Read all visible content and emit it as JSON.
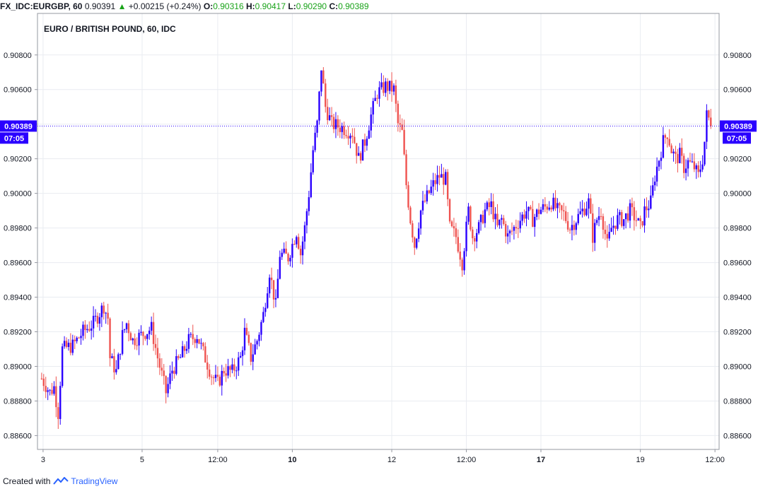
{
  "header": {
    "symbol": "FX_IDC:EURGBP, 60",
    "price": "0.90391",
    "change": "+0.00215 (+0.24%)",
    "o_label": "O:",
    "o_value": "0.90316",
    "h_label": "H:",
    "h_value": "0.90417",
    "l_label": "L:",
    "l_value": "0.90290",
    "c_label": "C:",
    "c_value": "0.90389"
  },
  "footer": {
    "created_with": "Created with",
    "brand": "TradingView"
  },
  "colors": {
    "up": "#2a00ff",
    "down": "#ef5350",
    "grid": "#e9ecf1",
    "badge": "#2a00ff",
    "accent_green": "#1aa31a"
  },
  "chart_data": {
    "type": "candlestick",
    "title": "EURO / BRITISH POUND, 60, IDC",
    "ylim": [
      0.8852,
      0.9104
    ],
    "y_ticks": [
      "0.88600",
      "0.88800",
      "0.89000",
      "0.89200",
      "0.89400",
      "0.89600",
      "0.89800",
      "0.90000",
      "0.90200",
      "0.90400",
      "0.90600",
      "0.90800"
    ],
    "x_ticks": [
      {
        "label": "3",
        "bold": false,
        "x": 0.7
      },
      {
        "label": "5",
        "bold": false,
        "x": 48.5
      },
      {
        "label": "12:00",
        "bold": false,
        "x": 85
      },
      {
        "label": "10",
        "bold": true,
        "x": 121
      },
      {
        "label": "12",
        "bold": false,
        "x": 169
      },
      {
        "label": "12:00",
        "bold": false,
        "x": 205
      },
      {
        "label": "17",
        "bold": true,
        "x": 241
      },
      {
        "label": "19",
        "bold": false,
        "x": 289
      },
      {
        "label": "12:00",
        "bold": false,
        "x": 325
      }
    ],
    "x_range": [
      -2,
      327
    ],
    "last_price": "0.90389",
    "last_price_value": 0.90389,
    "countdown": "07:05",
    "anchors": [
      [
        0,
        0.8893
      ],
      [
        4,
        0.8885
      ],
      [
        6,
        0.8888
      ],
      [
        8,
        0.8873
      ],
      [
        10,
        0.891
      ],
      [
        15,
        0.8912
      ],
      [
        20,
        0.892
      ],
      [
        25,
        0.8925
      ],
      [
        30,
        0.8935
      ],
      [
        32,
        0.8928
      ],
      [
        33,
        0.8905
      ],
      [
        36,
        0.8897
      ],
      [
        39,
        0.8918
      ],
      [
        41,
        0.8925
      ],
      [
        44,
        0.8915
      ],
      [
        48,
        0.8918
      ],
      [
        53,
        0.8922
      ],
      [
        56,
        0.8905
      ],
      [
        60,
        0.8885
      ],
      [
        63,
        0.8898
      ],
      [
        67,
        0.8905
      ],
      [
        71,
        0.8915
      ],
      [
        75,
        0.8918
      ],
      [
        78,
        0.8908
      ],
      [
        82,
        0.8895
      ],
      [
        85,
        0.889
      ],
      [
        88,
        0.8898
      ],
      [
        92,
        0.8897
      ],
      [
        96,
        0.8905
      ],
      [
        98,
        0.892
      ],
      [
        101,
        0.8905
      ],
      [
        104,
        0.8915
      ],
      [
        107,
        0.893
      ],
      [
        110,
        0.8955
      ],
      [
        113,
        0.8935
      ],
      [
        115,
        0.8965
      ],
      [
        119,
        0.8963
      ],
      [
        123,
        0.8978
      ],
      [
        125,
        0.8965
      ],
      [
        127,
        0.898
      ],
      [
        129,
        0.9
      ],
      [
        131,
        0.9025
      ],
      [
        133,
        0.904
      ],
      [
        135,
        0.9073
      ],
      [
        137,
        0.905
      ],
      [
        140,
        0.904
      ],
      [
        145,
        0.9038
      ],
      [
        150,
        0.9035
      ],
      [
        153,
        0.902
      ],
      [
        156,
        0.903
      ],
      [
        159,
        0.9045
      ],
      [
        162,
        0.9058
      ],
      [
        166,
        0.9062
      ],
      [
        170,
        0.906
      ],
      [
        172,
        0.904
      ],
      [
        174,
        0.9035
      ],
      [
        176,
        0.9005
      ],
      [
        178,
        0.8985
      ],
      [
        180,
        0.897
      ],
      [
        183,
        0.899
      ],
      [
        186,
        0.8998
      ],
      [
        189,
        0.9005
      ],
      [
        192,
        0.901
      ],
      [
        195,
        0.9008
      ],
      [
        197,
        0.898
      ],
      [
        200,
        0.8975
      ],
      [
        203,
        0.896
      ],
      [
        206,
        0.899
      ],
      [
        208,
        0.8975
      ],
      [
        211,
        0.898
      ],
      [
        214,
        0.899
      ],
      [
        217,
        0.8993
      ],
      [
        220,
        0.898
      ],
      [
        222,
        0.8985
      ],
      [
        225,
        0.8975
      ],
      [
        228,
        0.898
      ],
      [
        231,
        0.8985
      ],
      [
        234,
        0.899
      ],
      [
        237,
        0.8985
      ],
      [
        240,
        0.899
      ],
      [
        243,
        0.8992
      ],
      [
        246,
        0.8995
      ],
      [
        249,
        0.899
      ],
      [
        252,
        0.8988
      ],
      [
        255,
        0.898
      ],
      [
        258,
        0.8985
      ],
      [
        261,
        0.899
      ],
      [
        264,
        0.8995
      ],
      [
        266,
        0.8975
      ],
      [
        268,
        0.8985
      ],
      [
        270,
        0.899
      ],
      [
        273,
        0.897
      ],
      [
        275,
        0.898
      ],
      [
        278,
        0.8985
      ],
      [
        281,
        0.8985
      ],
      [
        284,
        0.899
      ],
      [
        287,
        0.8985
      ],
      [
        289,
        0.898
      ],
      [
        291,
        0.899
      ],
      [
        294,
        0.8995
      ],
      [
        296,
        0.901
      ],
      [
        298,
        0.902
      ],
      [
        300,
        0.903
      ],
      [
        302,
        0.9035
      ],
      [
        304,
        0.9025
      ],
      [
        306,
        0.902
      ],
      [
        308,
        0.9022
      ],
      [
        310,
        0.9015
      ],
      [
        312,
        0.9018
      ],
      [
        315,
        0.9015
      ],
      [
        317,
        0.901
      ],
      [
        319,
        0.902
      ],
      [
        320,
        0.903
      ],
      [
        321,
        0.9045
      ],
      [
        322,
        0.9043
      ],
      [
        323,
        0.9039
      ]
    ]
  }
}
